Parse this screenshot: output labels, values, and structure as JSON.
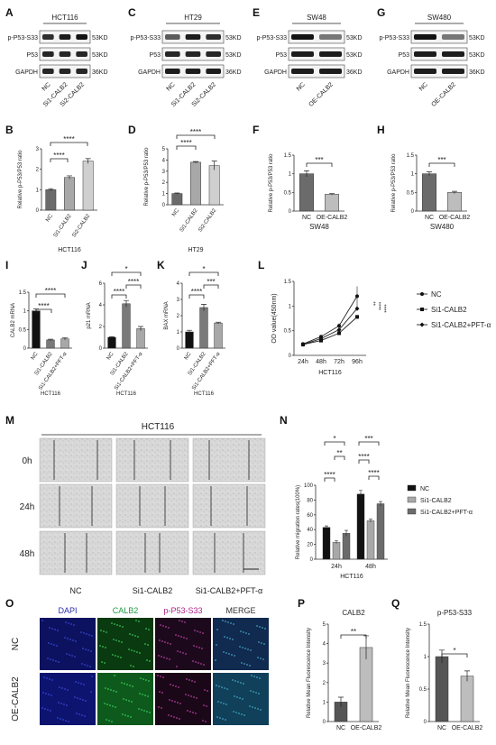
{
  "panel_letters": [
    "A",
    "B",
    "C",
    "D",
    "E",
    "F",
    "G",
    "H",
    "I",
    "J",
    "K",
    "L",
    "M",
    "N",
    "O",
    "P",
    "Q"
  ],
  "blots": [
    {
      "cell_line": "HCT116",
      "bands": [
        "p-P53-S33",
        "P53",
        "GAPDH"
      ],
      "kd": [
        "53KD",
        "53KD",
        "36KD"
      ],
      "lanes": [
        "NC",
        "Si1-CALB2",
        "Si2-CALB2"
      ]
    },
    {
      "cell_line": "HT29",
      "bands": [
        "p-P53-S33",
        "P53",
        "GAPDH"
      ],
      "kd": [
        "53KD",
        "53KD",
        "36KD"
      ],
      "lanes": [
        "NC",
        "Si1-CALB2",
        "Si2-CALB2"
      ]
    },
    {
      "cell_line": "SW48",
      "bands": [
        "p-P53-S33",
        "P53",
        "GAPDH"
      ],
      "kd": [
        "53KD",
        "53KD",
        "36KD"
      ],
      "lanes": [
        "NC",
        "OE-CALB2"
      ]
    },
    {
      "cell_line": "SW480",
      "bands": [
        "p-P53-S33",
        "P53",
        "GAPDH"
      ],
      "kd": [
        "53KD",
        "53KD",
        "36KD"
      ],
      "lanes": [
        "NC",
        "OE-CALB2"
      ]
    }
  ],
  "ylabels": {
    "ratio": "Relative p-P53/P53 ratio",
    "calb2": "CALB2 mRNA",
    "p21": "p21 mRNA",
    "bax": "BAX mRNA",
    "od": "OD value(450nm)",
    "migration": "Relative migration rates(100%)",
    "mfi": "Relative Mean Fluorescence Intensity"
  },
  "sig": {
    "s4": "****",
    "s3": "***",
    "s2": "**",
    "s1": "*"
  },
  "legend_L": [
    "NC",
    "Si1-CALB2",
    "Si1-CALB2+PFT-α"
  ],
  "scratch": {
    "title": "HCT116",
    "rows": [
      "0h",
      "24h",
      "48h"
    ],
    "cols": [
      "NC",
      "Si1-CALB2",
      "Si1-CALB2+PFT-α"
    ]
  },
  "if": {
    "cols": [
      "DAPI",
      "CALB2",
      "p-P53-S33",
      "MERGE"
    ],
    "rows": [
      "NC",
      "OE-CALB2"
    ],
    "colors": [
      "#2a2aa8",
      "#1a9a40",
      "#b0208a",
      "#333333"
    ]
  },
  "chart_data": [
    {
      "panel": "B",
      "type": "bar",
      "title": "",
      "xlabel": "HCT116",
      "ylabel": "Relative p-P53/P53 ratio",
      "categories": [
        "NC",
        "Si1-CALB2",
        "Si2-CALB2"
      ],
      "values": [
        1.0,
        1.6,
        2.4
      ],
      "errors": [
        0.05,
        0.08,
        0.12
      ],
      "ylim": [
        0,
        3
      ],
      "yticks": [
        0,
        1,
        2,
        3
      ],
      "colors": [
        "#6b6b6b",
        "#a8a8a8",
        "#cfcfcf"
      ]
    },
    {
      "panel": "D",
      "type": "bar",
      "title": "",
      "xlabel": "HT29",
      "ylabel": "Relative p-P53/P53 ratio",
      "categories": [
        "NC",
        "Si1-CALB2",
        "Si2-CALB2"
      ],
      "values": [
        1.0,
        3.8,
        3.5
      ],
      "errors": [
        0.05,
        0.06,
        0.4
      ],
      "ylim": [
        0,
        5
      ],
      "yticks": [
        0,
        1,
        2,
        3,
        4,
        5
      ],
      "colors": [
        "#6b6b6b",
        "#a8a8a8",
        "#cfcfcf"
      ]
    },
    {
      "panel": "F",
      "type": "bar",
      "title": "",
      "xlabel": "SW48",
      "ylabel": "Relative p-P53/P53 ratio",
      "categories": [
        "NC",
        "OE-CALB2"
      ],
      "values": [
        1.0,
        0.45
      ],
      "errors": [
        0.08,
        0.02
      ],
      "ylim": [
        0,
        1.5
      ],
      "yticks": [
        0,
        0.5,
        1.0,
        1.5
      ],
      "colors": [
        "#6b6b6b",
        "#bdbdbd"
      ]
    },
    {
      "panel": "H",
      "type": "bar",
      "title": "",
      "xlabel": "SW480",
      "ylabel": "Relative p-P53/P53 ratio",
      "categories": [
        "NC",
        "OE-CALB2"
      ],
      "values": [
        1.0,
        0.5
      ],
      "errors": [
        0.05,
        0.03
      ],
      "ylim": [
        0,
        1.5
      ],
      "yticks": [
        0,
        0.5,
        1.0,
        1.5
      ],
      "colors": [
        "#6b6b6b",
        "#bdbdbd"
      ]
    },
    {
      "panel": "I",
      "type": "bar",
      "title": "",
      "xlabel": "HCT116",
      "ylabel": "CALB2 mRNA",
      "categories": [
        "NC",
        "Si1-CALB2",
        "Si1-CALB2+PFT-α"
      ],
      "values": [
        1.0,
        0.22,
        0.25
      ],
      "errors": [
        0.05,
        0.02,
        0.03
      ],
      "ylim": [
        0,
        1.5
      ],
      "yticks": [
        0,
        0.5,
        1.0,
        1.5
      ],
      "colors": [
        "#111111",
        "#7a7a7a",
        "#a8a8a8"
      ]
    },
    {
      "panel": "J",
      "type": "bar",
      "title": "",
      "xlabel": "HCT116",
      "ylabel": "p21 mRNA",
      "categories": [
        "NC",
        "Si1-CALB2",
        "Si1-CALB2+PFT-α"
      ],
      "values": [
        1.0,
        4.1,
        1.8
      ],
      "errors": [
        0.05,
        0.3,
        0.2
      ],
      "ylim": [
        0,
        6
      ],
      "yticks": [
        0,
        2,
        4,
        6
      ],
      "colors": [
        "#111111",
        "#7a7a7a",
        "#a8a8a8"
      ]
    },
    {
      "panel": "K",
      "type": "bar",
      "title": "",
      "xlabel": "HCT116",
      "ylabel": "BAX mRNA",
      "categories": [
        "NC",
        "Si1-CALB2",
        "Si1-CALB2+PFT-α"
      ],
      "values": [
        1.0,
        2.5,
        1.55
      ],
      "errors": [
        0.1,
        0.2,
        0.05
      ],
      "ylim": [
        0,
        4
      ],
      "yticks": [
        0,
        1,
        2,
        3,
        4
      ],
      "colors": [
        "#111111",
        "#7a7a7a",
        "#a8a8a8"
      ]
    },
    {
      "panel": "L",
      "type": "line",
      "title": "",
      "xlabel": "HCT116",
      "ylabel": "OD value(450nm)",
      "x": [
        "24h",
        "48h",
        "72h",
        "96h"
      ],
      "ylim": [
        0,
        1.5
      ],
      "yticks": [
        0,
        0.5,
        1.0,
        1.5
      ],
      "series": [
        {
          "name": "NC",
          "values": [
            0.23,
            0.38,
            0.6,
            1.2
          ],
          "errors": [
            0.02,
            0.03,
            0.05,
            0.2
          ]
        },
        {
          "name": "Si1-CALB2",
          "values": [
            0.22,
            0.3,
            0.45,
            0.78
          ],
          "errors": [
            0.02,
            0.03,
            0.04,
            0.04
          ]
        },
        {
          "name": "Si1-CALB2+PFT-α",
          "values": [
            0.22,
            0.34,
            0.52,
            0.95
          ],
          "errors": [
            0.02,
            0.03,
            0.04,
            0.05
          ]
        }
      ]
    },
    {
      "panel": "N",
      "type": "bar",
      "title": "",
      "xlabel": "HCT116",
      "ylabel": "Relative migration rates(100%)",
      "categories": [
        "24h",
        "48h"
      ],
      "ylim": [
        0,
        100
      ],
      "yticks": [
        0,
        20,
        40,
        60,
        80,
        100
      ],
      "series": [
        {
          "name": "NC",
          "values": [
            43,
            88
          ],
          "errors": [
            2,
            5
          ],
          "color": "#111111"
        },
        {
          "name": "Si1-CALB2",
          "values": [
            23,
            52
          ],
          "errors": [
            2,
            2
          ],
          "color": "#a8a8a8"
        },
        {
          "name": "Si1-CALB2+PFT-α",
          "values": [
            35,
            75
          ],
          "errors": [
            4,
            3
          ],
          "color": "#6b6b6b"
        }
      ]
    },
    {
      "panel": "P",
      "type": "bar",
      "title": "CALB2",
      "xlabel": "",
      "ylabel": "Relative Mean Fluorescence Intensity",
      "categories": [
        "NC",
        "OE-CALB2"
      ],
      "values": [
        1.0,
        3.8
      ],
      "errors": [
        0.25,
        0.6
      ],
      "ylim": [
        0,
        5
      ],
      "yticks": [
        0,
        1,
        2,
        3,
        4,
        5
      ],
      "colors": [
        "#555555",
        "#bdbdbd"
      ]
    },
    {
      "panel": "Q",
      "type": "bar",
      "title": "p-P53-S33",
      "xlabel": "",
      "ylabel": "Relative Mean Fluorescence Intensity",
      "categories": [
        "NC",
        "OE-CALB2"
      ],
      "values": [
        1.0,
        0.7
      ],
      "errors": [
        0.1,
        0.08
      ],
      "ylim": [
        0,
        1.5
      ],
      "yticks": [
        0,
        0.5,
        1.0,
        1.5
      ],
      "colors": [
        "#555555",
        "#bdbdbd"
      ]
    }
  ]
}
